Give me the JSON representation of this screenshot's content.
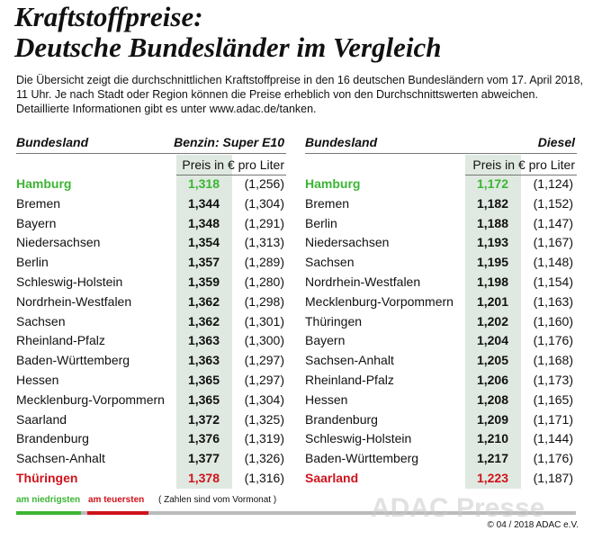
{
  "header": {
    "title_lines": [
      "Kraftstoffpreise:",
      "Deutsche Bundesländer im Vergleich"
    ],
    "intro_lines": [
      "Die Übersicht zeigt die durchschnittlichen Kraftstoffpreise in den 16 deutschen Bundesländern vom 17. April 2018,",
      "11 Uhr. Je nach Stadt oder Region können die Preise erheblich von den Durchschnittswerten abweichen.",
      "Detaillierte Informationen gibt es unter www.adac.de/tanken."
    ]
  },
  "tables": [
    {
      "col_header": "Bundesland",
      "fuel": "Benzin:  Super E10",
      "unit": "Preis in € pro Liter",
      "rows": [
        [
          "Hamburg",
          "1,318",
          "(1,256)"
        ],
        [
          "Bremen",
          "1,344",
          "(1,304)"
        ],
        [
          "Bayern",
          "1,348",
          "(1,291)"
        ],
        [
          "Niedersachsen",
          "1,354",
          "(1,313)"
        ],
        [
          "Berlin",
          "1,357",
          "(1,289)"
        ],
        [
          "Schleswig-Holstein",
          "1,359",
          "(1,280)"
        ],
        [
          "Nordrhein-Westfalen",
          "1,362",
          "(1,298)"
        ],
        [
          "Sachsen",
          "1,362",
          "(1,301)"
        ],
        [
          "Rheinland-Pfalz",
          "1,363",
          "(1,300)"
        ],
        [
          "Baden-Württemberg",
          "1,363",
          "(1,297)"
        ],
        [
          "Hessen",
          "1,365",
          "(1,297)"
        ],
        [
          "Mecklenburg-Vorpommern",
          "1,365",
          "(1,304)"
        ],
        [
          "Saarland",
          "1,372",
          "(1,325)"
        ],
        [
          "Brandenburg",
          "1,376",
          "(1,319)"
        ],
        [
          "Sachsen-Anhalt",
          "1,377",
          "(1,326)"
        ],
        [
          "Thüringen",
          "1,378",
          "(1,316)"
        ]
      ]
    },
    {
      "col_header": "Bundesland",
      "fuel": "Diesel",
      "unit": "Preis in € pro Liter",
      "rows": [
        [
          "Hamburg",
          "1,172",
          "(1,124)"
        ],
        [
          "Bremen",
          "1,182",
          "(1,152)"
        ],
        [
          "Berlin",
          "1,188",
          "(1,147)"
        ],
        [
          "Niedersachsen",
          "1,193",
          "(1,167)"
        ],
        [
          "Sachsen",
          "1,195",
          "(1,148)"
        ],
        [
          "Nordrhein-Westfalen",
          "1,198",
          "(1,154)"
        ],
        [
          "Mecklenburg-Vorpommern",
          "1,201",
          "(1,163)"
        ],
        [
          "Thüringen",
          "1,202",
          "(1,160)"
        ],
        [
          "Bayern",
          "1,204",
          "(1,176)"
        ],
        [
          "Sachsen-Anhalt",
          "1,205",
          "(1,168)"
        ],
        [
          "Rheinland-Pfalz",
          "1,206",
          "(1,173)"
        ],
        [
          "Hessen",
          "1,208",
          "(1,165)"
        ],
        [
          "Brandenburg",
          "1,209",
          "(1,171)"
        ],
        [
          "Schleswig-Holstein",
          "1,210",
          "(1,144)"
        ],
        [
          "Baden-Württemberg",
          "1,217",
          "(1,176)"
        ],
        [
          "Saarland",
          "1,223",
          "(1,187)"
        ]
      ]
    }
  ],
  "footer": {
    "legend_low": "am niedrigsten",
    "legend_high": "am teuersten",
    "note": "( Zahlen sind vom Vormonat )",
    "watermark": "ADAC Presse",
    "copyright": "© 04 / 2018 ADAC e.V."
  }
}
